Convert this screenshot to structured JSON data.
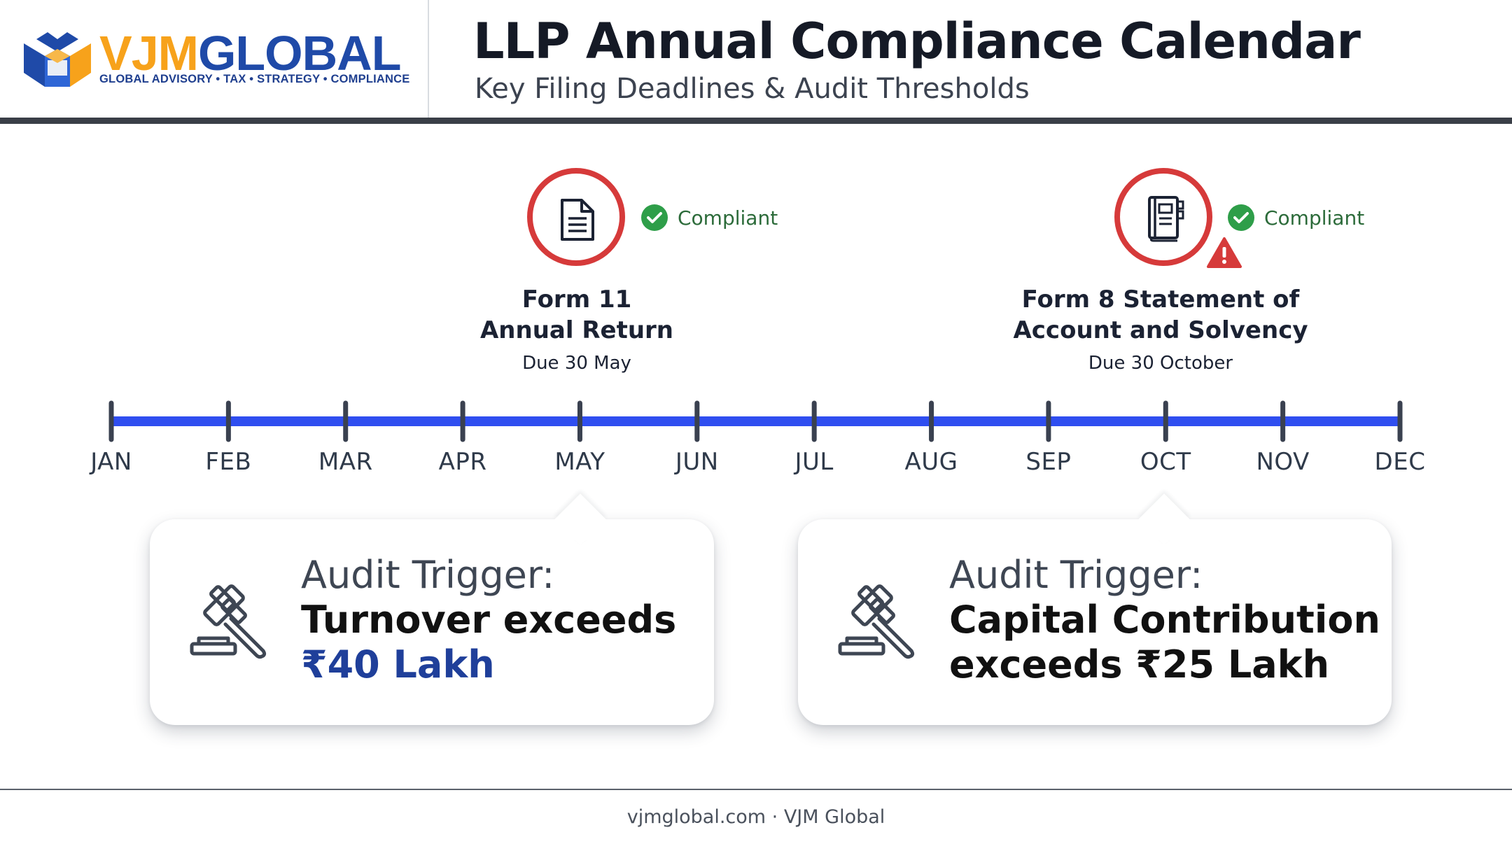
{
  "brand": {
    "name_part1": "VJM",
    "name_part2": "GLOBAL",
    "tagline": "GLOBAL ADVISORY • TAX • STRATEGY • COMPLIANCE"
  },
  "header": {
    "title": "LLP Annual Compliance Calendar",
    "subtitle": "Key Filing Deadlines & Audit Thresholds"
  },
  "timeline": {
    "months": [
      "JAN",
      "FEB",
      "MAR",
      "APR",
      "MAY",
      "JUN",
      "JUL",
      "AUG",
      "SEP",
      "OCT",
      "NOV",
      "DEC"
    ],
    "line_color": "#2f4ef0"
  },
  "milestones": [
    {
      "month": "MAY",
      "icon": "document-icon",
      "status": "Compliant",
      "title_line1": "Form 11",
      "title_line2": "Annual Return",
      "due": "Due 30 May",
      "warning": false
    },
    {
      "month": "OCT",
      "icon": "ledger-book-icon",
      "status": "Compliant",
      "title_line1": "Form 8 Statement of",
      "title_line2": "Account and Solvency",
      "due": "Due 30 October",
      "warning": true
    }
  ],
  "cards": [
    {
      "month": "MAY",
      "icon": "gavel-icon",
      "label": "Audit Trigger:",
      "line2": "Turnover exceeds",
      "line3": "₹40 Lakh"
    },
    {
      "month": "OCT",
      "icon": "gavel-icon",
      "label": "Audit Trigger:",
      "line2": "Capital Contribution",
      "line3": "exceeds ₹25 Lakh"
    }
  ],
  "colors": {
    "accent_red": "#d63a3a",
    "compliant_green": "#2e9e49",
    "brand_orange": "#f7a21b",
    "brand_blue": "#1f4aa8"
  },
  "footer": {
    "text": "vjmglobal.com · VJM Global"
  }
}
